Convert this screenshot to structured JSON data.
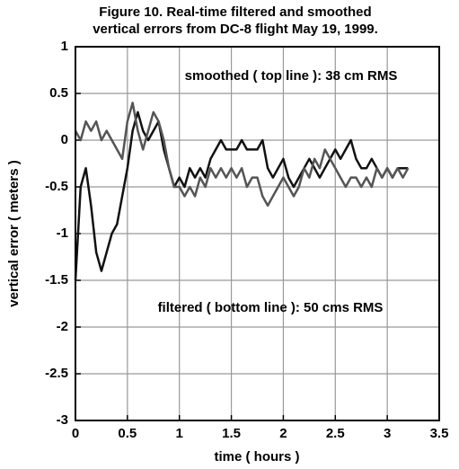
{
  "chart_data": {
    "type": "line",
    "title_lines": [
      "Figure 10.  Real-time filtered and smoothed",
      "vertical errors from DC-8 flight May 19, 1999."
    ],
    "x_label": "time ( hours )",
    "y_label": "vertical error ( meters )",
    "annotations": [
      "smoothed ( top line ): 38 cm RMS",
      "filtered ( bottom line ): 50 cms RMS"
    ],
    "x": [
      0,
      0.05,
      0.1,
      0.15,
      0.2,
      0.25,
      0.3,
      0.35,
      0.4,
      0.45,
      0.5,
      0.55,
      0.6,
      0.65,
      0.7,
      0.75,
      0.8,
      0.85,
      0.9,
      0.95,
      1.0,
      1.05,
      1.1,
      1.15,
      1.2,
      1.25,
      1.3,
      1.35,
      1.4,
      1.45,
      1.5,
      1.55,
      1.6,
      1.65,
      1.7,
      1.75,
      1.8,
      1.85,
      1.9,
      1.95,
      2.0,
      2.05,
      2.1,
      2.15,
      2.2,
      2.25,
      2.3,
      2.35,
      2.4,
      2.45,
      2.5,
      2.55,
      2.6,
      2.65,
      2.7,
      2.75,
      2.8,
      2.85,
      2.9,
      2.95,
      3.0,
      3.05,
      3.1,
      3.15,
      3.2
    ],
    "series": [
      {
        "color": "#111111",
        "values": [
          -1.5,
          -0.5,
          -0.3,
          -0.7,
          -1.2,
          -1.4,
          -1.2,
          -1.0,
          -0.9,
          -0.6,
          -0.3,
          0.1,
          0.3,
          0.1,
          0.0,
          0.1,
          0.2,
          -0.1,
          -0.3,
          -0.5,
          -0.4,
          -0.5,
          -0.3,
          -0.4,
          -0.3,
          -0.4,
          -0.2,
          -0.1,
          0.0,
          -0.1,
          -0.1,
          -0.1,
          0.0,
          -0.1,
          -0.1,
          -0.1,
          0.0,
          -0.3,
          -0.4,
          -0.3,
          -0.2,
          -0.4,
          -0.5,
          -0.4,
          -0.3,
          -0.2,
          -0.3,
          -0.4,
          -0.3,
          -0.2,
          -0.1,
          -0.2,
          -0.1,
          0.0,
          -0.2,
          -0.3,
          -0.3,
          -0.2,
          -0.3,
          -0.4,
          -0.3,
          -0.4,
          -0.3,
          -0.3,
          -0.3
        ]
      },
      {
        "color": "#555555",
        "values": [
          0.1,
          0.0,
          0.2,
          0.1,
          0.2,
          0.0,
          0.1,
          0.0,
          -0.1,
          -0.2,
          0.2,
          0.4,
          0.1,
          -0.1,
          0.1,
          0.3,
          0.2,
          0.0,
          -0.3,
          -0.5,
          -0.5,
          -0.6,
          -0.5,
          -0.6,
          -0.4,
          -0.5,
          -0.3,
          -0.4,
          -0.3,
          -0.4,
          -0.3,
          -0.4,
          -0.3,
          -0.5,
          -0.4,
          -0.4,
          -0.6,
          -0.7,
          -0.6,
          -0.5,
          -0.4,
          -0.5,
          -0.6,
          -0.5,
          -0.3,
          -0.4,
          -0.2,
          -0.3,
          -0.1,
          -0.2,
          -0.3,
          -0.4,
          -0.5,
          -0.4,
          -0.4,
          -0.5,
          -0.4,
          -0.5,
          -0.3,
          -0.4,
          -0.3,
          -0.4,
          -0.3,
          -0.4,
          -0.3
        ]
      }
    ],
    "xlim": [
      0,
      3.5
    ],
    "xticks": [
      0,
      0.5,
      1,
      1.5,
      2,
      2.5,
      3,
      3.5
    ],
    "ylim": [
      -3,
      1
    ],
    "yticks": [
      -3,
      -2.5,
      -2,
      -1.5,
      -1,
      -0.5,
      0,
      0.5,
      1
    ],
    "grid": true
  }
}
